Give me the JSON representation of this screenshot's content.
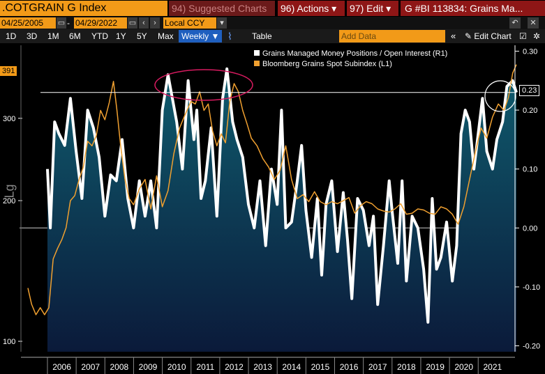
{
  "toolbar": {
    "ticker": ".COTGRAIN G Index",
    "suggested": "94) Suggested Charts",
    "actions": "96) Actions ▾",
    "edit": "97) Edit ▾",
    "title": "G #BI 113834: Grains Ma..."
  },
  "dates": {
    "start": "04/25/2005",
    "dash": "-",
    "end": "04/29/2022",
    "currency": "Local CCY"
  },
  "periods": [
    "1D",
    "3D",
    "1M",
    "6M",
    "YTD",
    "1Y",
    "5Y",
    "Max"
  ],
  "frequency": "Weekly ▼",
  "table_label": "Table",
  "add_data_placeholder": "Add Data",
  "edit_chart_label": "Edit Chart",
  "scale_label": "Lg",
  "colors": {
    "white_series": "#ffffff",
    "orange_series": "#f0a030",
    "area_top": "#0f5c6e",
    "area_bottom": "#0b1a3a",
    "highlight": "#d81b60"
  },
  "chart_data": {
    "type": "line",
    "x_ticks": [
      "2006",
      "2007",
      "2008",
      "2009",
      "2010",
      "2011",
      "2012",
      "2013",
      "2014",
      "2015",
      "2016",
      "2017",
      "2018",
      "2019",
      "2020",
      "2021"
    ],
    "left_ticks": [
      "300",
      "200",
      "100"
    ],
    "right_ticks": [
      "0.30",
      "0.20",
      "0.10",
      "0.00",
      "-0.10",
      "-0.20"
    ],
    "left_axis": {
      "scale": "log",
      "range": [
        95,
        430
      ]
    },
    "right_axis": {
      "range": [
        -0.21,
        0.31
      ]
    },
    "last_values": {
      "left": "391",
      "right": "0.23"
    },
    "reference_line": 0.23,
    "series": [
      {
        "name": "Grains Managed Money Positions / Open Interest (R1)",
        "axis": "right",
        "x": [
          2006.0,
          2006.1,
          2006.25,
          2006.4,
          2006.6,
          2006.8,
          2007.0,
          2007.2,
          2007.4,
          2007.6,
          2007.8,
          2008.0,
          2008.2,
          2008.4,
          2008.6,
          2008.8,
          2009.0,
          2009.2,
          2009.4,
          2009.6,
          2009.8,
          2010.0,
          2010.2,
          2010.35,
          2010.5,
          2010.7,
          2010.9,
          2011.1,
          2011.2,
          2011.35,
          2011.5,
          2011.7,
          2011.9,
          2012.1,
          2012.25,
          2012.45,
          2012.6,
          2012.8,
          2013.0,
          2013.2,
          2013.4,
          2013.6,
          2013.8,
          2014.0,
          2014.15,
          2014.3,
          2014.5,
          2014.7,
          2014.85,
          2015.0,
          2015.2,
          2015.4,
          2015.55,
          2015.7,
          2015.9,
          2016.1,
          2016.3,
          2016.45,
          2016.6,
          2016.8,
          2017.0,
          2017.2,
          2017.35,
          2017.5,
          2017.7,
          2017.9,
          2018.0,
          2018.2,
          2018.35,
          2018.5,
          2018.7,
          2018.9,
          2019.1,
          2019.25,
          2019.4,
          2019.55,
          2019.7,
          2019.9,
          2020.1,
          2020.25,
          2020.4,
          2020.55,
          2020.7,
          2020.85,
          2021.0,
          2021.15,
          2021.3,
          2021.5,
          2021.65,
          2021.85,
          2022.0,
          2022.2,
          2022.33
        ],
        "values": [
          0.1,
          0.0,
          0.18,
          0.16,
          0.14,
          0.22,
          0.13,
          0.05,
          0.2,
          0.17,
          0.12,
          0.02,
          0.09,
          0.08,
          0.15,
          0.05,
          0.0,
          0.08,
          0.02,
          0.08,
          0.0,
          0.2,
          0.26,
          0.22,
          0.18,
          0.1,
          0.25,
          0.15,
          0.2,
          0.05,
          0.08,
          0.17,
          0.02,
          0.22,
          0.27,
          0.18,
          0.15,
          0.12,
          0.04,
          0.0,
          0.08,
          -0.03,
          0.1,
          0.04,
          0.2,
          0.0,
          0.01,
          0.08,
          0.14,
          0.03,
          -0.05,
          0.05,
          -0.08,
          0.04,
          0.08,
          -0.04,
          0.06,
          -0.02,
          -0.12,
          0.05,
          0.03,
          -0.03,
          0.02,
          -0.13,
          -0.03,
          0.08,
          0.03,
          -0.06,
          0.08,
          -0.09,
          0.02,
          0.0,
          -0.07,
          -0.16,
          0.05,
          -0.07,
          -0.05,
          0.01,
          -0.09,
          -0.03,
          0.16,
          0.2,
          0.18,
          0.1,
          0.16,
          0.22,
          0.13,
          0.1,
          0.15,
          0.18,
          0.24,
          0.25,
          0.23
        ]
      },
      {
        "name": "Bloomberg Grains Spot Subindex (L1)",
        "axis": "left",
        "x": [
          2005.32,
          2005.45,
          2005.6,
          2005.75,
          2005.9,
          2006.05,
          2006.2,
          2006.35,
          2006.5,
          2006.65,
          2006.8,
          2006.95,
          2007.1,
          2007.25,
          2007.4,
          2007.55,
          2007.7,
          2007.85,
          2008.0,
          2008.15,
          2008.3,
          2008.42,
          2008.55,
          2008.7,
          2008.85,
          2009.0,
          2009.2,
          2009.4,
          2009.6,
          2009.8,
          2010.0,
          2010.2,
          2010.4,
          2010.6,
          2010.8,
          2011.0,
          2011.15,
          2011.3,
          2011.45,
          2011.6,
          2011.75,
          2011.9,
          2012.05,
          2012.2,
          2012.35,
          2012.5,
          2012.65,
          2012.8,
          2012.95,
          2013.1,
          2013.3,
          2013.5,
          2013.7,
          2013.9,
          2014.1,
          2014.3,
          2014.5,
          2014.7,
          2014.9,
          2015.1,
          2015.3,
          2015.5,
          2015.7,
          2015.9,
          2016.1,
          2016.3,
          2016.5,
          2016.7,
          2016.9,
          2017.1,
          2017.3,
          2017.5,
          2017.7,
          2017.9,
          2018.1,
          2018.3,
          2018.5,
          2018.7,
          2018.9,
          2019.1,
          2019.3,
          2019.5,
          2019.7,
          2019.9,
          2020.1,
          2020.3,
          2020.5,
          2020.7,
          2020.9,
          2021.1,
          2021.3,
          2021.5,
          2021.7,
          2021.9,
          2022.05,
          2022.2,
          2022.33
        ],
        "values": [
          130,
          120,
          114,
          118,
          114,
          118,
          150,
          158,
          165,
          175,
          200,
          205,
          222,
          236,
          268,
          262,
          275,
          312,
          298,
          324,
          360,
          312,
          262,
          222,
          202,
          196,
          212,
          222,
          192,
          226,
          194,
          210,
          252,
          286,
          306,
          326,
          322,
          342,
          312,
          322,
          282,
          262,
          278,
          266,
          326,
          356,
          342,
          312,
          292,
          272,
          262,
          246,
          236,
          222,
          232,
          262,
          222,
          202,
          206,
          199,
          209,
          199,
          196,
          199,
          197,
          200,
          203,
          188,
          195,
          199,
          197,
          192,
          190,
          189,
          192,
          197,
          187,
          188,
          192,
          191,
          188,
          187,
          194,
          192,
          187,
          178,
          194,
          222,
          254,
          286,
          272,
          302,
          322,
          312,
          332,
          375,
          391
        ]
      }
    ]
  }
}
